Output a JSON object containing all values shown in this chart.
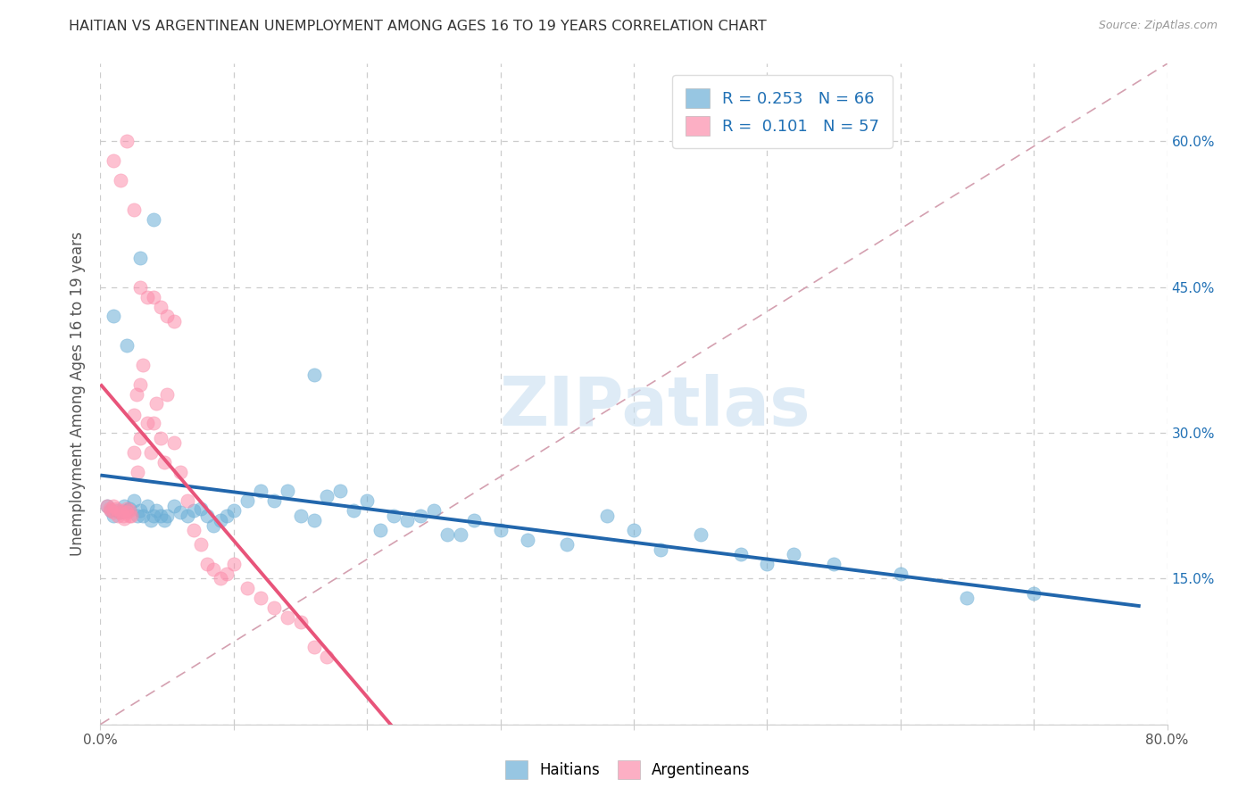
{
  "title": "HAITIAN VS ARGENTINEAN UNEMPLOYMENT AMONG AGES 16 TO 19 YEARS CORRELATION CHART",
  "source": "Source: ZipAtlas.com",
  "ylabel": "Unemployment Among Ages 16 to 19 years",
  "xlim": [
    0.0,
    0.8
  ],
  "ylim": [
    0.0,
    0.68
  ],
  "haitian_color": "#6baed6",
  "argentinean_color": "#fc8eac",
  "haitian_line_color": "#2166ac",
  "argentinean_line_color": "#e8547a",
  "haitian_R": 0.253,
  "haitian_N": 66,
  "argentinean_R": 0.101,
  "argentinean_N": 57,
  "legend_text_color": "#2171b5",
  "watermark": "ZIPatlas",
  "background_color": "#ffffff",
  "haitian_x": [
    0.005,
    0.008,
    0.01,
    0.012,
    0.015,
    0.018,
    0.02,
    0.022,
    0.025,
    0.028,
    0.03,
    0.032,
    0.035,
    0.038,
    0.04,
    0.042,
    0.045,
    0.048,
    0.05,
    0.055,
    0.06,
    0.065,
    0.07,
    0.075,
    0.08,
    0.085,
    0.09,
    0.095,
    0.1,
    0.11,
    0.12,
    0.13,
    0.14,
    0.15,
    0.16,
    0.17,
    0.18,
    0.19,
    0.2,
    0.21,
    0.22,
    0.23,
    0.24,
    0.25,
    0.26,
    0.27,
    0.28,
    0.3,
    0.32,
    0.35,
    0.38,
    0.4,
    0.42,
    0.45,
    0.48,
    0.5,
    0.52,
    0.55,
    0.6,
    0.65,
    0.7,
    0.01,
    0.02,
    0.03,
    0.04,
    0.16
  ],
  "haitian_y": [
    0.225,
    0.22,
    0.215,
    0.22,
    0.218,
    0.225,
    0.22,
    0.222,
    0.23,
    0.215,
    0.22,
    0.215,
    0.225,
    0.21,
    0.215,
    0.22,
    0.215,
    0.21,
    0.215,
    0.225,
    0.218,
    0.215,
    0.22,
    0.222,
    0.215,
    0.205,
    0.21,
    0.215,
    0.22,
    0.23,
    0.24,
    0.23,
    0.24,
    0.215,
    0.21,
    0.235,
    0.24,
    0.22,
    0.23,
    0.2,
    0.215,
    0.21,
    0.215,
    0.22,
    0.195,
    0.195,
    0.21,
    0.2,
    0.19,
    0.185,
    0.215,
    0.2,
    0.18,
    0.195,
    0.175,
    0.165,
    0.175,
    0.165,
    0.155,
    0.13,
    0.135,
    0.42,
    0.39,
    0.48,
    0.52,
    0.36
  ],
  "argentinean_x": [
    0.005,
    0.007,
    0.008,
    0.01,
    0.01,
    0.012,
    0.013,
    0.015,
    0.015,
    0.017,
    0.018,
    0.02,
    0.02,
    0.022,
    0.022,
    0.023,
    0.025,
    0.025,
    0.027,
    0.028,
    0.03,
    0.03,
    0.032,
    0.035,
    0.038,
    0.04,
    0.042,
    0.045,
    0.048,
    0.05,
    0.055,
    0.06,
    0.065,
    0.07,
    0.075,
    0.08,
    0.085,
    0.09,
    0.095,
    0.1,
    0.11,
    0.12,
    0.13,
    0.14,
    0.15,
    0.16,
    0.17,
    0.01,
    0.015,
    0.02,
    0.025,
    0.03,
    0.035,
    0.04,
    0.045,
    0.05,
    0.055
  ],
  "argentinean_y": [
    0.225,
    0.222,
    0.22,
    0.218,
    0.225,
    0.222,
    0.215,
    0.22,
    0.218,
    0.215,
    0.212,
    0.218,
    0.222,
    0.215,
    0.22,
    0.215,
    0.318,
    0.28,
    0.34,
    0.26,
    0.35,
    0.295,
    0.37,
    0.31,
    0.28,
    0.31,
    0.33,
    0.295,
    0.27,
    0.34,
    0.29,
    0.26,
    0.23,
    0.2,
    0.185,
    0.165,
    0.16,
    0.15,
    0.155,
    0.165,
    0.14,
    0.13,
    0.12,
    0.11,
    0.105,
    0.08,
    0.07,
    0.58,
    0.56,
    0.6,
    0.53,
    0.45,
    0.44,
    0.44,
    0.43,
    0.42,
    0.415
  ]
}
